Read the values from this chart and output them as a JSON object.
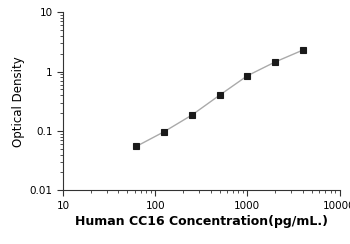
{
  "x_values": [
    62.5,
    125,
    250,
    500,
    1000,
    2000,
    4000
  ],
  "y_values": [
    0.055,
    0.097,
    0.185,
    0.4,
    0.85,
    1.45,
    2.3
  ],
  "xlabel": "Human CC16 Concentration(pg/mL.)",
  "ylabel": "Optical Density",
  "xlim": [
    10,
    10000
  ],
  "ylim": [
    0.01,
    10
  ],
  "line_color": "#aaaaaa",
  "marker_color": "#1a1a1a",
  "marker": "s",
  "marker_size": 4,
  "line_width": 1.0,
  "xlabel_fontsize": 9,
  "ylabel_fontsize": 8.5,
  "tick_fontsize": 7.5,
  "background_color": "#ffffff"
}
